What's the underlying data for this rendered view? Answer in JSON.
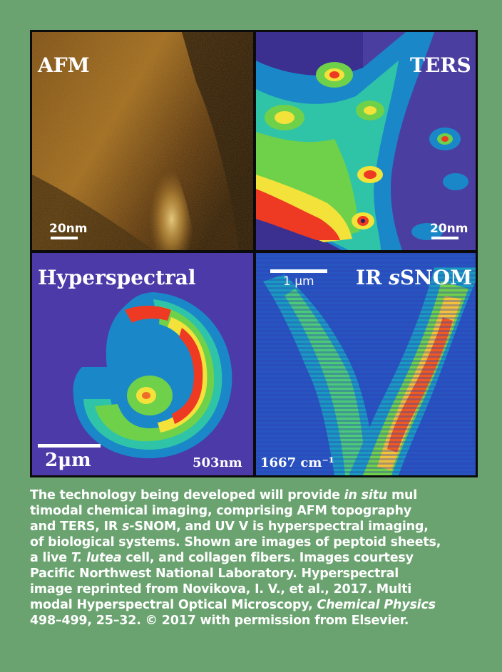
{
  "panels": {
    "afm": {
      "label": "AFM",
      "scale": "20nm"
    },
    "ters": {
      "label": "TERS",
      "scale": "20nm"
    },
    "hyperspectral": {
      "label": "Hyperspectral",
      "scale": "2μm",
      "wavelength": "503nm"
    },
    "ir": {
      "label_prefix": "IR ",
      "label_italic": "s",
      "label_suffix": "SNOM",
      "scale": "1 μm",
      "wavenumber": "1667 cm⁻¹"
    }
  },
  "caption": {
    "l1_a": "The technology being developed will provide ",
    "l1_it": "in situ",
    "l1_b": " mul",
    "l2": "timodal chemical imaging, comprising AFM topography",
    "l3_a": "and TERS, IR ",
    "l3_it": "s",
    "l3_b": "-SNOM, and UV V is hyperspectral imaging,",
    "l4": "of biological systems. Shown are images of peptoid sheets,",
    "l5_a": "a live ",
    "l5_it": "T. lutea",
    "l5_b": " cell, and collagen fibers. Images courtesy",
    "l6": "Pacific Northwest National Laboratory. Hyperspectral",
    "l7": "image reprinted from Novikova, I. V., et al., 2017.   Multi",
    "l8_a": "modal Hyperspectral Optical Microscopy,  ",
    "l8_it": "Chemical Physics",
    "l9": "498–499, 25–32. © 2017 with permission from Elsevier."
  },
  "colors": {
    "background": "#6aa36f",
    "frame": "#0b0b0b",
    "text": "#ffffff"
  }
}
